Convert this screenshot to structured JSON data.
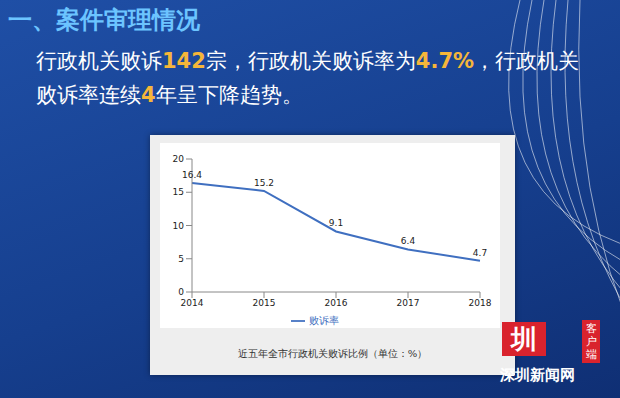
{
  "header": {
    "title": "一、案件审理情况",
    "segments": [
      {
        "text": "行政机关败诉",
        "highlight": false
      },
      {
        "text": "142",
        "highlight": true
      },
      {
        "text": "宗，行政机关败诉率为",
        "highlight": false
      },
      {
        "text": "4.7%",
        "highlight": true
      },
      {
        "text": "，行政机关败诉率连续",
        "highlight": false
      },
      {
        "text": "4",
        "highlight": true
      },
      {
        "text": "年呈下降趋势。",
        "highlight": false
      }
    ]
  },
  "chart_data": {
    "type": "line",
    "caption": "近五年全市行政机关败诉比例（单位：%）",
    "categories": [
      "2014",
      "2015",
      "2016",
      "2017",
      "2018"
    ],
    "series": [
      {
        "name": "败诉率",
        "color": "#3f6fc0",
        "values": [
          16.4,
          15.2,
          9.1,
          6.4,
          4.7
        ]
      }
    ],
    "ylim": [
      0,
      20
    ],
    "yticks": [
      0,
      5,
      10,
      15,
      20
    ],
    "grid": false,
    "legend": "bottom",
    "data_labels": true
  },
  "watermark": {
    "logo": "圳",
    "name": "深圳新闻网",
    "tag": "客户端"
  }
}
